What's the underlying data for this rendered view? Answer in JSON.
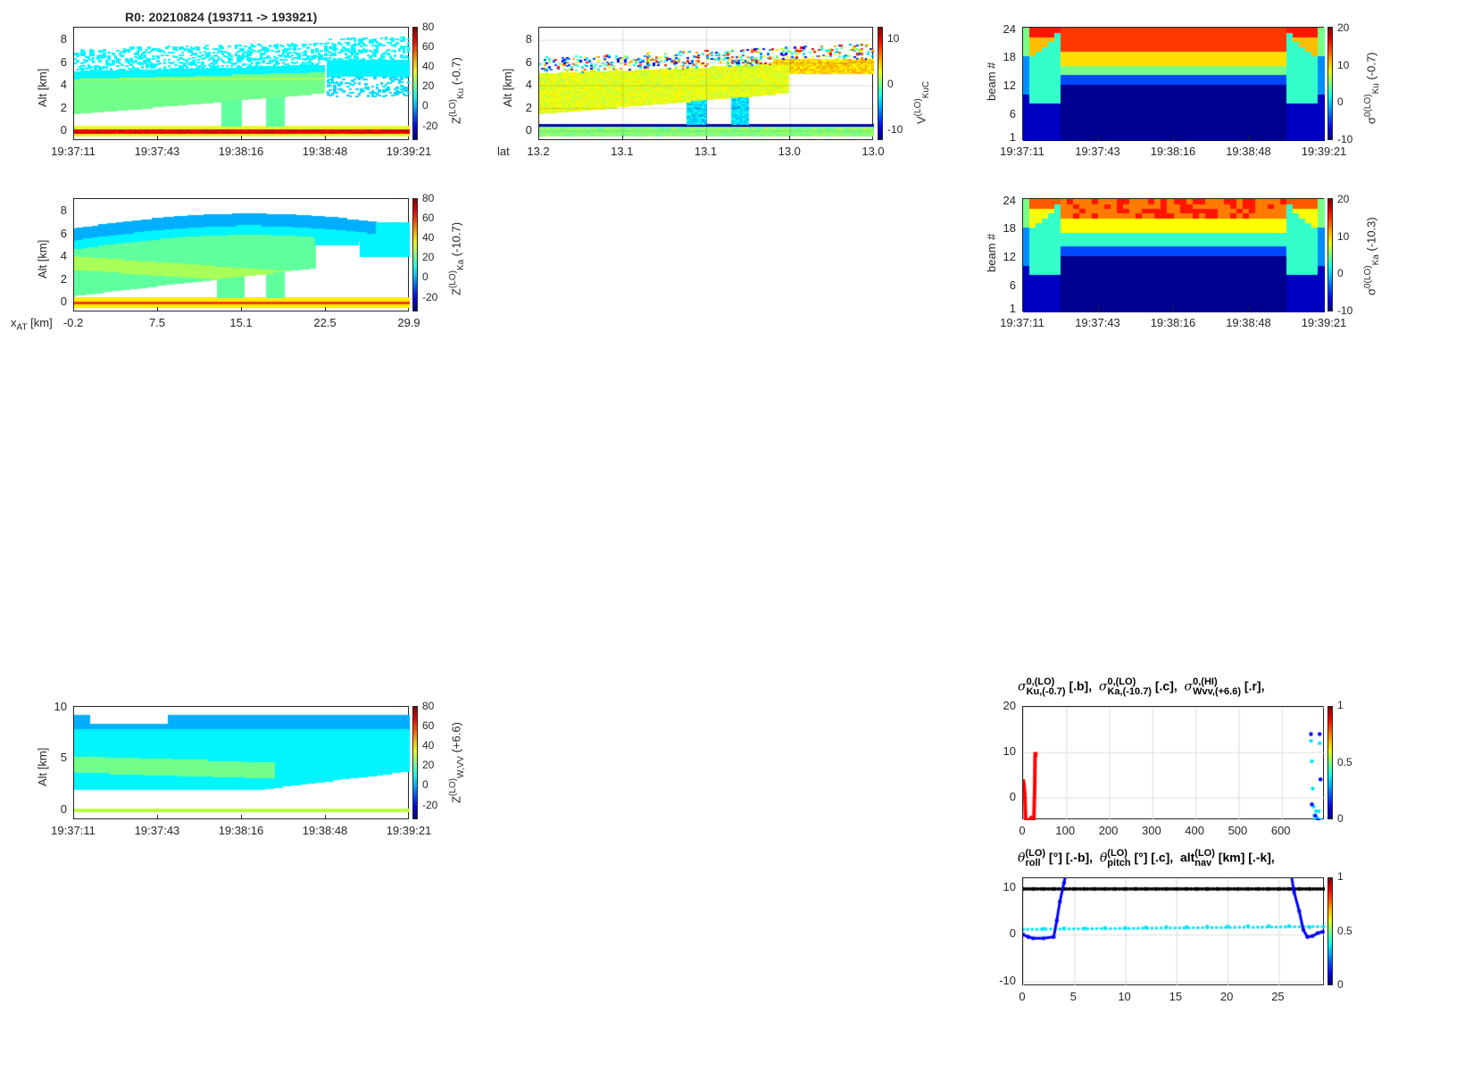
{
  "figure_title": "R0:  20210824 (193711 -> 193921)",
  "colors": {
    "axis": "#262626",
    "grid": "#dcdcdc",
    "red": "#ff0000",
    "blue": "#0000ff",
    "cyan": "#00ffff",
    "black": "#000000"
  },
  "chart_data": [
    {
      "id": "p1",
      "type": "heatmap",
      "ylabel": "Alt [km]",
      "ylim": [
        -0.86,
        9.1
      ],
      "yticks": [
        0,
        2,
        4,
        6,
        8
      ],
      "xtick_labels": [
        "19:37:11",
        "19:37:43",
        "19:38:16",
        "19:38:48",
        "19:39:21"
      ],
      "xprefix": "",
      "clim": [
        -34,
        81
      ],
      "cticks": [
        80,
        60,
        40,
        20,
        0,
        -20
      ],
      "clabel": {
        "base": "Z",
        "sup": "(LO)",
        "sub": "Ku",
        "suffix": " (-0.7)"
      },
      "field": "ku"
    },
    {
      "id": "p2",
      "type": "heatmap",
      "ylabel": "Alt [km]",
      "ylim": [
        -0.86,
        9.1
      ],
      "yticks": [
        0,
        2,
        4,
        6,
        8
      ],
      "xtick_labels": [
        "13.2",
        "13.1",
        "13.1",
        "13.0",
        "13.0"
      ],
      "xprefix": "lat",
      "grid": true,
      "clim": [
        -12.1,
        12.7
      ],
      "cticks": [
        10,
        0,
        -10
      ],
      "clabel": {
        "base": "V",
        "sup": "(LO)",
        "sub": "KuC",
        "suffix": ""
      },
      "field": "vel"
    },
    {
      "id": "p3",
      "type": "heatmap",
      "ylabel": "beam #",
      "ylim": [
        0.5,
        24.5
      ],
      "yticks": [
        1,
        6,
        12,
        18,
        24
      ],
      "xtick_labels": [
        "19:37:11",
        "19:37:43",
        "19:38:16",
        "19:38:48",
        "19:39:21"
      ],
      "xprefix": "",
      "clim": [
        -10,
        20.5
      ],
      "cticks": [
        20,
        10,
        0,
        -10
      ],
      "clabel": {
        "base": "σ",
        "sup": "0(LO)",
        "sub": "Ku",
        "suffix": " (-0.7)"
      },
      "field": "beamKu"
    },
    {
      "id": "p4",
      "type": "heatmap",
      "ylabel": "Alt [km]",
      "ylim": [
        -0.86,
        9.1
      ],
      "yticks": [
        0,
        2,
        4,
        6,
        8
      ],
      "xtick_labels": [
        "-0.2",
        "7.5",
        "15.1",
        "22.5",
        "29.9"
      ],
      "xprefix": "x",
      "xprefix_sub": "AT",
      "xprefix_suffix": " [km]",
      "clim": [
        -34,
        81
      ],
      "cticks": [
        80,
        60,
        40,
        20,
        0,
        -20
      ],
      "clabel": {
        "base": "Z",
        "sup": "(LO)",
        "sub": "Ka",
        "suffix": " (-10.7)"
      },
      "field": "ka"
    },
    {
      "id": "p5",
      "type": "heatmap",
      "ylabel": "beam #",
      "ylim": [
        0.5,
        24.5
      ],
      "yticks": [
        1,
        6,
        12,
        18,
        24
      ],
      "xtick_labels": [
        "19:37:11",
        "19:37:43",
        "19:38:16",
        "19:38:48",
        "19:39:21"
      ],
      "xprefix": "",
      "clim": [
        -10,
        20.5
      ],
      "cticks": [
        20,
        10,
        0,
        -10
      ],
      "clabel": {
        "base": "σ",
        "sup": "0(LO)",
        "sub": "Ka",
        "suffix": " (-10.3)"
      },
      "field": "beamKa"
    },
    {
      "id": "p6",
      "type": "heatmap",
      "ylabel": "Alt [km]",
      "ylim": [
        -1,
        10.1
      ],
      "yticks": [
        0,
        5,
        10
      ],
      "xtick_labels": [
        "19:37:11",
        "19:37:43",
        "19:38:16",
        "19:38:48",
        "19:39:21"
      ],
      "xprefix": "",
      "clim": [
        -34,
        81
      ],
      "cticks": [
        80,
        60,
        40,
        20,
        0,
        -20
      ],
      "clabel": {
        "base": "Z",
        "sup": "(LO)",
        "sub": "W,VV",
        "suffix": " (+6.6)"
      },
      "field": "w"
    },
    {
      "id": "p7",
      "type": "line",
      "grid": true,
      "xlim": [
        0,
        700
      ],
      "ylim": [
        -5,
        20
      ],
      "xticks": [
        0,
        100,
        200,
        300,
        400,
        500,
        600
      ],
      "yticks": [
        0,
        10,
        20
      ],
      "clim": [
        0,
        1
      ],
      "cticks": [
        1,
        0.5,
        0
      ],
      "title": [
        {
          "sym": "σ",
          "sup": "0,(LO)",
          "sub": "Ku,(-0.7)",
          "tail": " [.b],  "
        },
        {
          "sym": "σ",
          "sup": "0,(LO)",
          "sub": "Ka,(-10.7)",
          "tail": " [.c],  "
        },
        {
          "sym": "σ",
          "sup": "0,(HI)",
          "sub": "Wvv,(+6.6)",
          "tail": " [.r],"
        }
      ],
      "series": [
        {
          "name": "Wvv",
          "color": "#ff0000",
          "style": "line",
          "x": [
            0,
            2,
            4,
            6,
            8,
            10,
            14,
            18,
            22,
            25,
            27,
            28,
            29,
            30
          ],
          "y": [
            4,
            3,
            1,
            -5,
            -5,
            -5,
            -5,
            -4.5,
            -5,
            -5,
            2,
            10,
            9,
            10
          ]
        },
        {
          "name": "Ka",
          "color": "#00e5ff",
          "style": "dots",
          "x": [
            668,
            670,
            672,
            674,
            676,
            678,
            680,
            682,
            684,
            686,
            688,
            690
          ],
          "y": [
            12.5,
            8,
            2,
            -2,
            -4,
            -5,
            -3,
            -4.5,
            -5,
            -3,
            12,
            -5
          ]
        },
        {
          "name": "Ku",
          "color": "#0000ff",
          "style": "dots",
          "x": [
            668,
            670,
            678,
            684,
            688,
            690
          ],
          "y": [
            14,
            -1.5,
            -4,
            -5,
            14,
            4
          ]
        }
      ]
    },
    {
      "id": "p8",
      "type": "line",
      "grid": true,
      "xlim": [
        0,
        29.5
      ],
      "ylim": [
        -11,
        12
      ],
      "xticks": [
        0,
        5,
        10,
        15,
        20,
        25
      ],
      "yticks": [
        -10,
        0,
        10
      ],
      "clim": [
        0,
        1
      ],
      "cticks": [
        1,
        0.5,
        0
      ],
      "title": [
        {
          "sym": "θ",
          "sup": "(LO)",
          "sub": "roll",
          "tail": " [°] [.-b],  "
        },
        {
          "sym": "θ",
          "sup": "(LO)",
          "sub": "pitch",
          "tail": " [°] [.c],  "
        },
        {
          "sym": "alt",
          "plain": true,
          "sup": "(LO)",
          "sub": "nav",
          "tail": " [km] [.-k],"
        }
      ],
      "series": [
        {
          "name": "alt_nav",
          "color": "#000000",
          "style": "linedots",
          "x": [
            0,
            1,
            2,
            3,
            4,
            5,
            6,
            7,
            8,
            9,
            10,
            11,
            12,
            13,
            14,
            15,
            16,
            17,
            18,
            19,
            20,
            21,
            22,
            23,
            24,
            25,
            26,
            27,
            28,
            29.5
          ],
          "y": [
            9.7,
            9.7,
            9.7,
            9.7,
            9.7,
            9.7,
            9.7,
            9.7,
            9.7,
            9.7,
            9.7,
            9.7,
            9.7,
            9.7,
            9.7,
            9.7,
            9.7,
            9.7,
            9.7,
            9.7,
            9.7,
            9.7,
            9.7,
            9.7,
            9.7,
            9.7,
            9.7,
            9.7,
            9.7,
            9.7
          ]
        },
        {
          "name": "pitch",
          "color": "#00e5ff",
          "style": "dots",
          "x": [
            0,
            2,
            4,
            6,
            8,
            10,
            12,
            14,
            16,
            18,
            20,
            22,
            24,
            26,
            28,
            29.5
          ],
          "y": [
            1.1,
            1.2,
            1.3,
            1.3,
            1.4,
            1.4,
            1.5,
            1.6,
            1.6,
            1.7,
            1.7,
            1.8,
            1.8,
            1.8,
            1.6,
            1.7
          ]
        },
        {
          "name": "roll",
          "color": "#0000ff",
          "style": "linedots",
          "x": [
            0,
            0.5,
            1,
            2,
            3,
            3.3,
            3.6,
            4,
            4.2
          ],
          "y": [
            0,
            -0.5,
            -0.8,
            -0.8,
            -0.5,
            3,
            7,
            11,
            13
          ]
        },
        {
          "name": "roll2",
          "color": "#0000ff",
          "style": "linedots",
          "x": [
            26.2,
            26.5,
            27,
            27.4,
            27.8,
            28.3,
            28.8,
            29.3
          ],
          "y": [
            13,
            9,
            5,
            1,
            -0.5,
            -0.3,
            0.3,
            0.6
          ]
        }
      ]
    }
  ]
}
